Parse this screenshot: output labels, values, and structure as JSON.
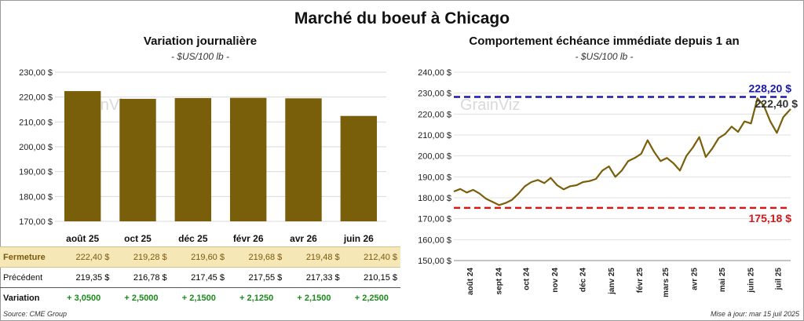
{
  "title": "Marché du boeuf à Chicago",
  "left": {
    "title": "Variation journalière",
    "unit": "- $US/100 lb -"
  },
  "right": {
    "title": "Comportement échéance immédiate depuis 1 an",
    "unit": "- $US/100 lb -"
  },
  "table": {
    "rows": [
      {
        "label": "Fermeture",
        "values": [
          "222,40  $",
          "219,28  $",
          "219,60  $",
          "219,68  $",
          "219,48  $",
          "212,40  $"
        ]
      },
      {
        "label": "Précédent",
        "values": [
          "219,35  $",
          "216,78  $",
          "217,45  $",
          "217,55  $",
          "217,33  $",
          "210,15  $"
        ]
      },
      {
        "label": "Variation",
        "values": [
          "+ 3,0500",
          "+ 2,5000",
          "+ 2,1500",
          "+ 2,1250",
          "+ 2,1500",
          "+ 2,2500"
        ]
      }
    ]
  },
  "watermark": "GrainViz",
  "footer": {
    "source": "Source: CME Group",
    "updated": "Mise à jour: mar 15 juil 2025"
  },
  "chart_data": [
    {
      "type": "bar",
      "categories": [
        "août 25",
        "oct 25",
        "déc 25",
        "févr 26",
        "avr 26",
        "juin 26"
      ],
      "values": [
        222.4,
        219.28,
        219.6,
        219.68,
        219.48,
        212.4
      ],
      "ylim": [
        170,
        230
      ],
      "yticks": [
        "170,00 $",
        "180,00 $",
        "190,00 $",
        "200,00 $",
        "210,00 $",
        "220,00 $",
        "230,00 $"
      ],
      "color": "#7a5f0a",
      "grid": true
    },
    {
      "type": "line",
      "ylim": [
        150,
        240
      ],
      "yticks": [
        "150,00 $",
        "160,00 $",
        "170,00 $",
        "180,00 $",
        "190,00 $",
        "200,00 $",
        "210,00 $",
        "220,00 $",
        "230,00 $",
        "240,00 $"
      ],
      "xticks": [
        "août 24",
        "sept 24",
        "oct 24",
        "nov 24",
        "déc 24",
        "janv 25",
        "févr 25",
        "mars 25",
        "avr 25",
        "mai 25",
        "juin 25",
        "juil 25"
      ],
      "x_domain": [
        "2024-07-15",
        "2025-07-15"
      ],
      "series": [
        {
          "color": "#7a5f0a",
          "points": [
            [
              "2024-07-15",
              183.0
            ],
            [
              "2024-07-22",
              184.2
            ],
            [
              "2024-07-29",
              182.5
            ],
            [
              "2024-08-05",
              183.8
            ],
            [
              "2024-08-12",
              182.0
            ],
            [
              "2024-08-19",
              179.5
            ],
            [
              "2024-08-26",
              178.0
            ],
            [
              "2024-09-02",
              176.5
            ],
            [
              "2024-09-09",
              177.5
            ],
            [
              "2024-09-16",
              179.0
            ],
            [
              "2024-09-23",
              182.0
            ],
            [
              "2024-09-30",
              185.5
            ],
            [
              "2024-10-07",
              187.5
            ],
            [
              "2024-10-14",
              188.5
            ],
            [
              "2024-10-21",
              187.0
            ],
            [
              "2024-10-28",
              189.5
            ],
            [
              "2024-11-04",
              186.0
            ],
            [
              "2024-11-11",
              184.0
            ],
            [
              "2024-11-18",
              185.5
            ],
            [
              "2024-11-25",
              186.0
            ],
            [
              "2024-12-02",
              187.5
            ],
            [
              "2024-12-09",
              188.0
            ],
            [
              "2024-12-16",
              189.0
            ],
            [
              "2024-12-23",
              193.0
            ],
            [
              "2024-12-30",
              195.0
            ],
            [
              "2025-01-06",
              190.0
            ],
            [
              "2025-01-13",
              193.0
            ],
            [
              "2025-01-20",
              197.5
            ],
            [
              "2025-01-27",
              199.0
            ],
            [
              "2025-02-03",
              201.0
            ],
            [
              "2025-02-10",
              207.5
            ],
            [
              "2025-02-17",
              202.0
            ],
            [
              "2025-02-24",
              197.5
            ],
            [
              "2025-03-03",
              199.0
            ],
            [
              "2025-03-10",
              196.5
            ],
            [
              "2025-03-17",
              193.0
            ],
            [
              "2025-03-24",
              200.0
            ],
            [
              "2025-03-31",
              204.0
            ],
            [
              "2025-04-07",
              209.0
            ],
            [
              "2025-04-14",
              199.5
            ],
            [
              "2025-04-21",
              203.5
            ],
            [
              "2025-04-28",
              208.5
            ],
            [
              "2025-05-05",
              210.5
            ],
            [
              "2025-05-12",
              214.0
            ],
            [
              "2025-05-19",
              211.5
            ],
            [
              "2025-05-26",
              216.5
            ],
            [
              "2025-06-02",
              215.5
            ],
            [
              "2025-06-09",
              227.5
            ],
            [
              "2025-06-16",
              224.0
            ],
            [
              "2025-06-23",
              216.5
            ],
            [
              "2025-06-30",
              211.0
            ],
            [
              "2025-07-07",
              218.5
            ],
            [
              "2025-07-15",
              222.4
            ]
          ]
        }
      ],
      "annotations": [
        {
          "label": "228,20 $",
          "value": 228.2,
          "color": "#1a1aa6"
        },
        {
          "label": "175,18 $",
          "value": 175.18,
          "color": "#d11a1a"
        },
        {
          "label": "222,40 $",
          "value": 222.4,
          "color": "#333333"
        }
      ],
      "grid": true
    }
  ]
}
